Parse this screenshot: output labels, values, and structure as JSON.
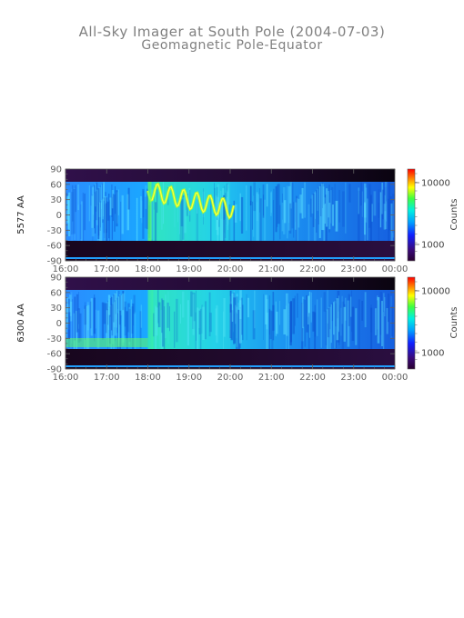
{
  "title": "All-Sky Imager at South Pole (2004-07-03)",
  "subtitle": "Geomagnetic Pole-Equator",
  "chart_data": [
    {
      "type": "heatmap",
      "ylabel": "5577 AA",
      "x_ticks": [
        "16:00",
        "17:00",
        "18:00",
        "19:00",
        "20:00",
        "21:00",
        "22:00",
        "23:00",
        "00:00"
      ],
      "y_ticks": [
        90,
        60,
        30,
        0,
        -30,
        -60,
        -90
      ],
      "ylim": [
        -90,
        90
      ],
      "colorbar": {
        "label": "Counts",
        "ticks": [
          "10000",
          "1000"
        ]
      }
    },
    {
      "type": "heatmap",
      "ylabel": "6300 AA",
      "x_ticks": [
        "16:00",
        "17:00",
        "18:00",
        "19:00",
        "20:00",
        "21:00",
        "22:00",
        "23:00",
        "00:00"
      ],
      "y_ticks": [
        90,
        60,
        30,
        0,
        -30,
        -60,
        -90
      ],
      "ylim": [
        -90,
        90
      ],
      "colorbar": {
        "label": "Counts",
        "ticks": [
          "10000",
          "1000"
        ]
      }
    }
  ]
}
